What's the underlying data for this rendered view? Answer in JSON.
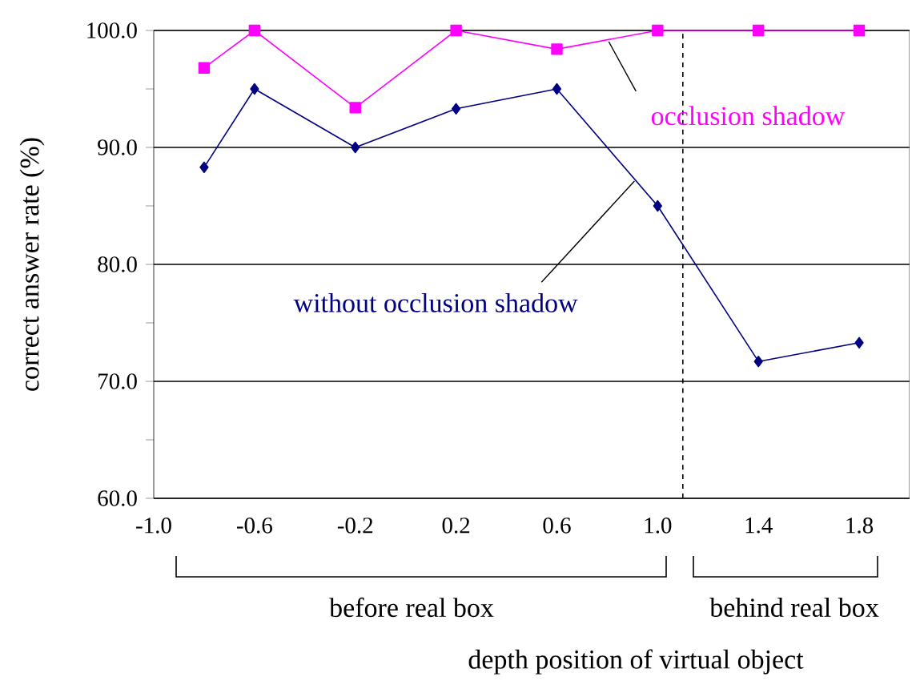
{
  "chart_data": {
    "type": "line",
    "xlabel": "depth position of virtual object",
    "ylabel": "correct answer rate (%)",
    "x": [
      -0.8,
      -0.6,
      -0.2,
      0.2,
      0.6,
      1.0,
      1.4,
      1.8
    ],
    "series": [
      {
        "name": "occlusion shadow",
        "color": "#ff00ff",
        "marker": "square",
        "values": [
          96.8,
          100,
          93.4,
          100,
          98.4,
          100,
          100,
          100
        ]
      },
      {
        "name": "without occlusion shadow",
        "color": "#000080",
        "marker": "diamond",
        "values": [
          88.3,
          95,
          90,
          93.3,
          95,
          85.0,
          71.7,
          73.3
        ]
      }
    ],
    "xlim": [
      -1.0,
      2.0
    ],
    "xticks": [
      {
        "value": -1.0,
        "label": "-1.0"
      },
      {
        "value": -0.6,
        "label": "-0.6"
      },
      {
        "value": -0.2,
        "label": "-0.2"
      },
      {
        "value": 0.2,
        "label": "0.2"
      },
      {
        "value": 0.6,
        "label": "0.6"
      },
      {
        "value": 1.0,
        "label": "1.0"
      },
      {
        "value": 1.4,
        "label": "1.4"
      },
      {
        "value": 1.8,
        "label": "1.8"
      }
    ],
    "ylim": [
      60,
      100
    ],
    "yticks": [
      {
        "value": 60,
        "label": "60.0"
      },
      {
        "value": 65,
        "label": null
      },
      {
        "value": 70,
        "label": "70.0"
      },
      {
        "value": 75,
        "label": null
      },
      {
        "value": 80,
        "label": "80.0"
      },
      {
        "value": 85,
        "label": null
      },
      {
        "value": 90,
        "label": "90.0"
      },
      {
        "value": 95,
        "label": null
      },
      {
        "value": 100,
        "label": "100.0"
      }
    ],
    "grid": "y",
    "legend": false,
    "line_style": "solid",
    "ref_lines": [
      {
        "axis": "x",
        "value": 1.1,
        "color": "#000000",
        "line_style": "dashed"
      }
    ],
    "annotations": [
      "before real box",
      "behind real box"
    ]
  }
}
